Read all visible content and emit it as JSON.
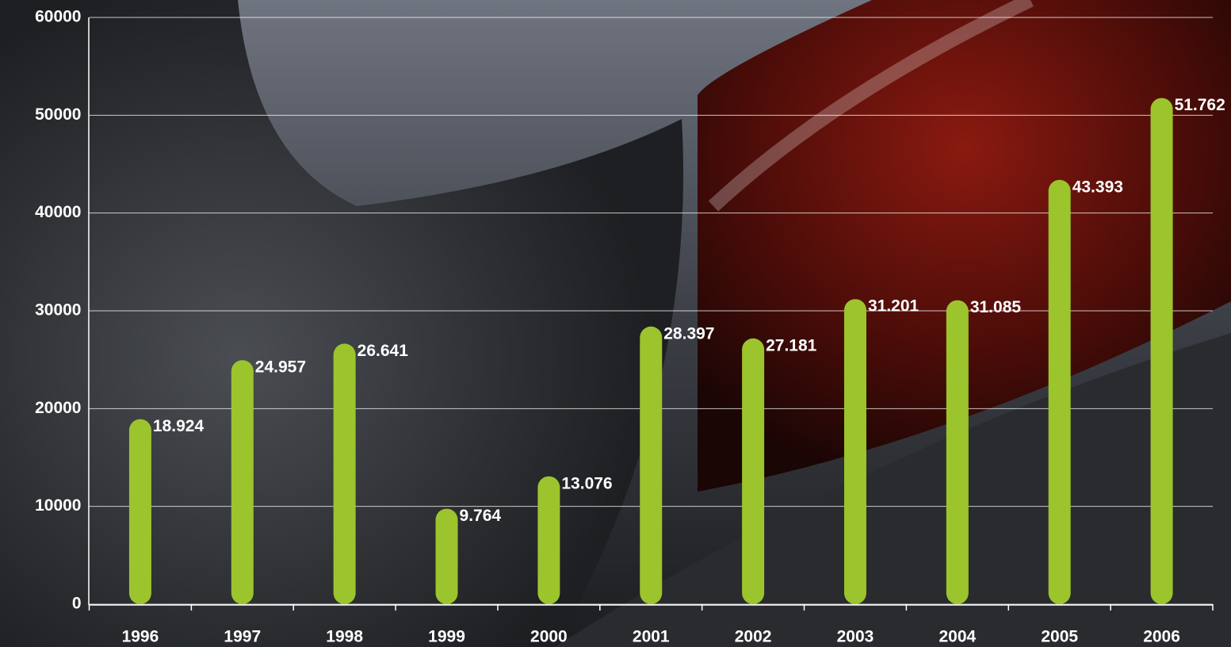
{
  "chart_data": {
    "type": "bar",
    "categories": [
      "1996",
      "1997",
      "1998",
      "1999",
      "2000",
      "2001",
      "2002",
      "2003",
      "2004",
      "2005",
      "2006"
    ],
    "values": [
      18924,
      24957,
      26641,
      9764,
      13076,
      28397,
      27181,
      31201,
      31085,
      43393,
      51762
    ],
    "value_labels": [
      "18.924",
      "24.957",
      "26.641",
      "9.764",
      "13.076",
      "28.397",
      "27.181",
      "31.201",
      "31.085",
      "43.393",
      "51.762"
    ],
    "color": "#9cc42c",
    "ylim": [
      0,
      60000
    ],
    "yticks": [
      0,
      10000,
      20000,
      30000,
      40000,
      50000,
      60000
    ],
    "grid": true
  }
}
